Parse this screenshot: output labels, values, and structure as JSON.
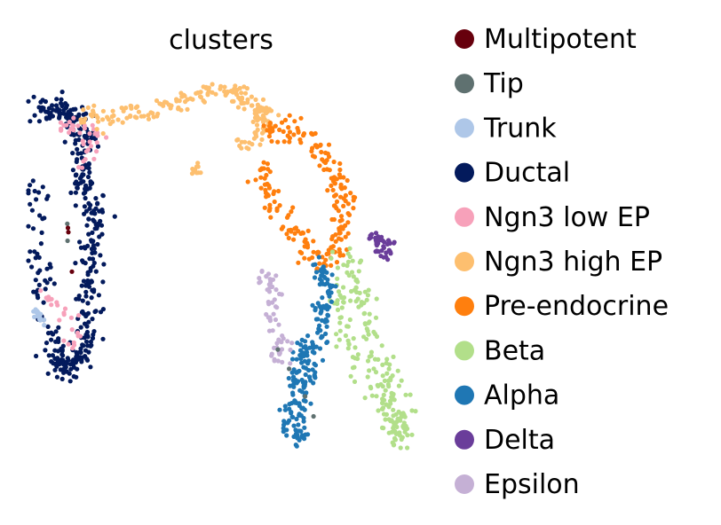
{
  "chart_data": {
    "type": "scatter",
    "title": "clusters",
    "xlabel": "",
    "ylabel": "",
    "axes": "off",
    "grid": false,
    "legend_position": "right",
    "clusters": [
      {
        "name": "Multipotent",
        "color": "#67000d"
      },
      {
        "name": "Tip",
        "color": "#5f7170"
      },
      {
        "name": "Trunk",
        "color": "#aec7e8"
      },
      {
        "name": "Ductal",
        "color": "#031a5c"
      },
      {
        "name": "Ngn3 low EP",
        "color": "#f7a1ba"
      },
      {
        "name": "Ngn3 high EP",
        "color": "#fdbf6f"
      },
      {
        "name": "Pre-endocrine",
        "color": "#ff7f0e"
      },
      {
        "name": "Beta",
        "color": "#b2df8a"
      },
      {
        "name": "Alpha",
        "color": "#1f77b4"
      },
      {
        "name": "Delta",
        "color": "#6a3d9a"
      },
      {
        "name": "Epsilon",
        "color": "#c5b0d5"
      }
    ]
  }
}
